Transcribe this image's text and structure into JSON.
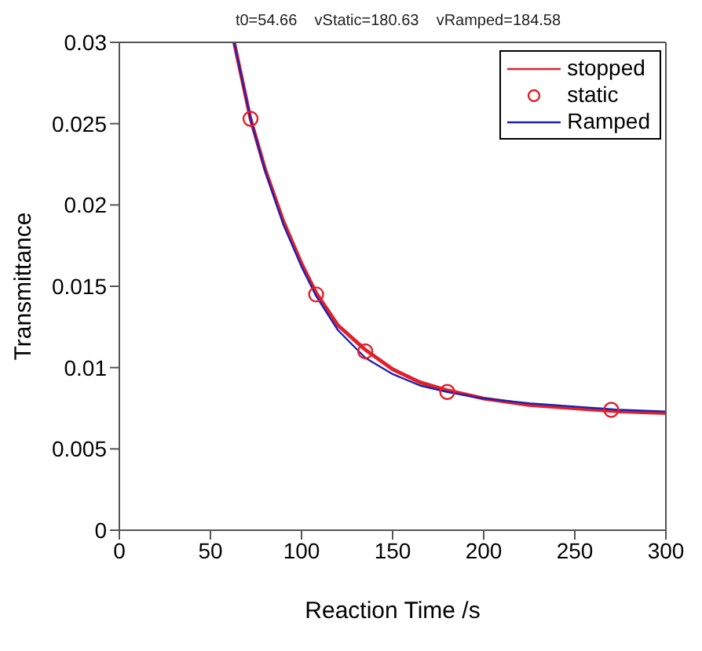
{
  "chart_data": {
    "type": "line",
    "title": "t0=54.66    vStatic=180.63    vRamped=184.58",
    "xlabel": "Reaction Time /s",
    "ylabel": "Transmittance",
    "xlim": [
      0,
      300
    ],
    "xticks": [
      0,
      50,
      100,
      150,
      200,
      250,
      300
    ],
    "ylim": [
      0,
      0.03
    ],
    "yticks": [
      0,
      0.005,
      0.01,
      0.015,
      0.02,
      0.025,
      0.03
    ],
    "grid": false,
    "legend": "top right",
    "series": [
      {
        "name": "stopped",
        "color": "#e0202a",
        "x": [
          63,
          72,
          80,
          90,
          100,
          108,
          120,
          135,
          150,
          165,
          180,
          200,
          225,
          250,
          275,
          300
        ],
        "values": [
          0.03,
          0.0253,
          0.0222,
          0.019,
          0.0164,
          0.0146,
          0.0126,
          0.0111,
          0.0099,
          0.0091,
          0.0086,
          0.0081,
          0.0077,
          0.0075,
          0.0073,
          0.0072
        ]
      },
      {
        "name": "static",
        "type": "scatter",
        "marker": "circle",
        "color": "#e0202a",
        "x": [
          72,
          108,
          135,
          180,
          270
        ],
        "values": [
          0.0253,
          0.0145,
          0.011,
          0.0085,
          0.0074
        ]
      },
      {
        "name": "Ramped",
        "color": "#2020b0",
        "x": [
          63,
          72,
          80,
          90,
          100,
          108,
          120,
          135,
          150,
          165,
          180,
          200,
          225,
          250,
          275,
          300
        ],
        "values": [
          0.03,
          0.0253,
          0.0221,
          0.0188,
          0.0162,
          0.0144,
          0.0123,
          0.0106,
          0.0096,
          0.0089,
          0.0085,
          0.0081,
          0.0078,
          0.0076,
          0.0074,
          0.0073
        ]
      }
    ]
  }
}
